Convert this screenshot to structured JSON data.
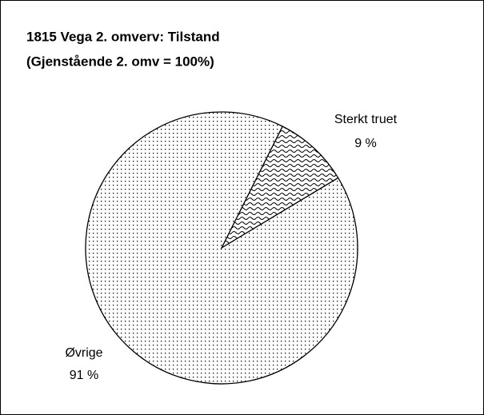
{
  "chart_data": {
    "type": "pie",
    "title": "1815 Vega 2. omverv:  Tilstand",
    "subtitle": "(Gjenstående 2. omv = 100%)",
    "categories": [
      "Sterkt truet",
      "Øvrige"
    ],
    "values": [
      9,
      91
    ],
    "value_labels": [
      "9 %",
      "91 %"
    ],
    "patterns": [
      "waves",
      "dots"
    ]
  }
}
